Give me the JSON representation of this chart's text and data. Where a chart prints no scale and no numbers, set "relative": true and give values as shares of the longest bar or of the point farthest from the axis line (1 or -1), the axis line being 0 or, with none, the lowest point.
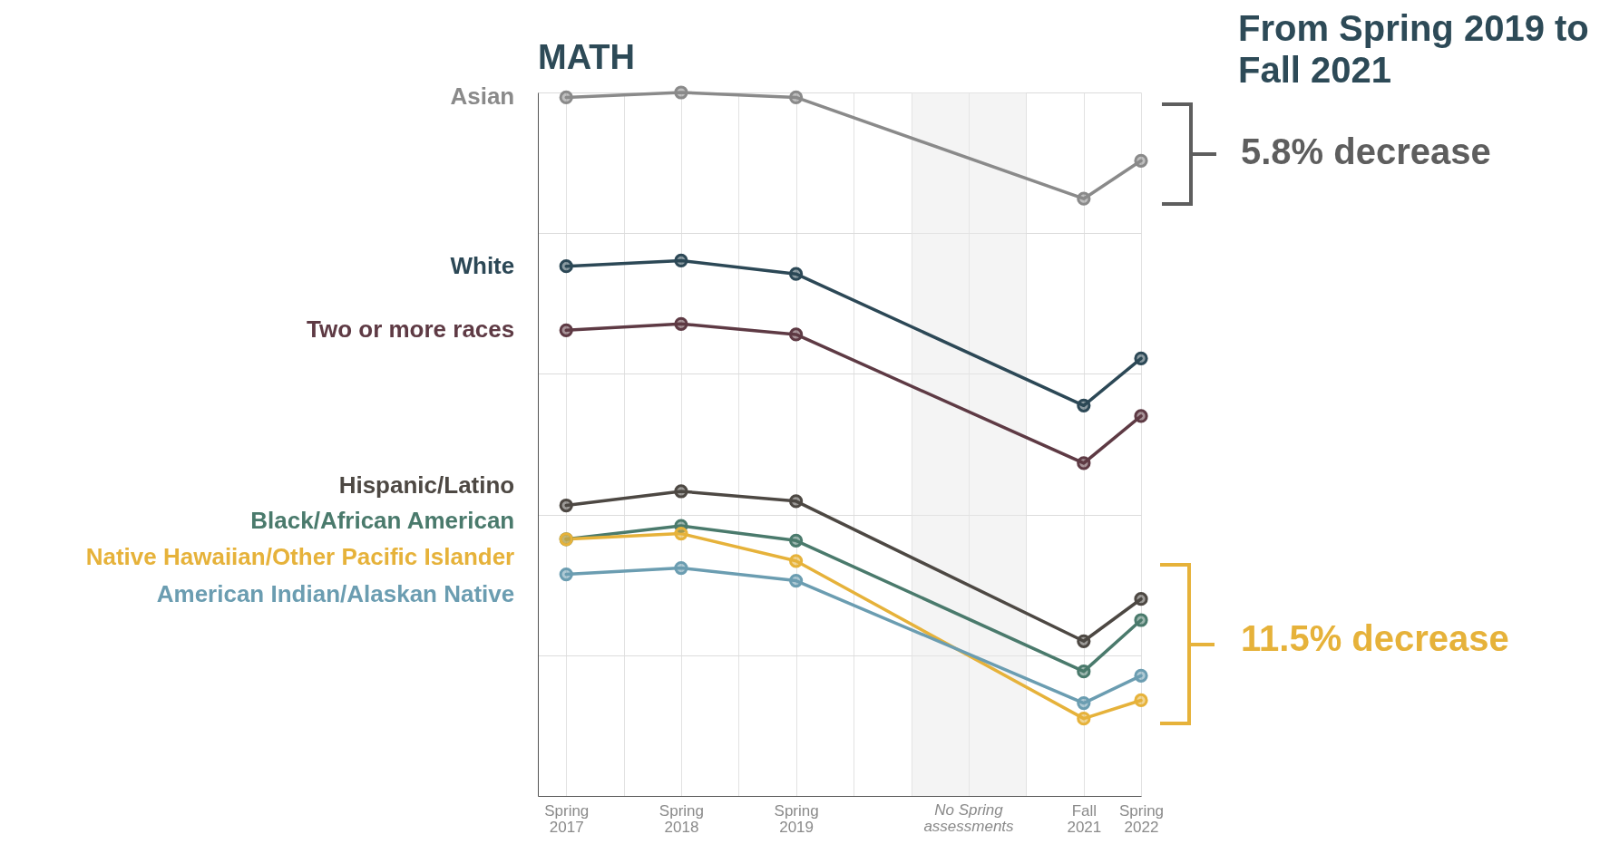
{
  "chart_data": {
    "type": "line",
    "title": "MATH",
    "relative": true,
    "x": [
      "2017-04",
      "2018-04",
      "2019-04",
      "2021-10",
      "2022-04"
    ],
    "xlim": [
      "2017-01",
      "2022-04"
    ],
    "xticks": [
      {
        "value": "2017-04",
        "label": "Spring 2017"
      },
      {
        "value": "2017-10",
        "label": null
      },
      {
        "value": "2018-04",
        "label": "Spring 2018"
      },
      {
        "value": "2018-10",
        "label": null
      },
      {
        "value": "2019-04",
        "label": "Spring 2019"
      },
      {
        "value": "2019-10",
        "label": null
      },
      {
        "value": "2020-04",
        "label": null
      },
      {
        "value": "2020-10",
        "label": null
      },
      {
        "value": "2021-04",
        "label": null
      },
      {
        "value": "2021-10",
        "label": "Fall 2021"
      },
      {
        "value": "2022-04",
        "label": "Spring 2022"
      }
    ],
    "series": [
      {
        "name": "Asian",
        "color": "#8a8a8a",
        "values": [
          0.993,
          1,
          0.993,
          0.849,
          0.903
        ]
      },
      {
        "name": "White",
        "color": "#2c4856",
        "values": [
          0.753,
          0.761,
          0.742,
          0.555,
          0.622
        ]
      },
      {
        "name": "Two or more races",
        "color": "#5e3a44",
        "values": [
          0.662,
          0.671,
          0.656,
          0.473,
          0.54
        ]
      },
      {
        "name": "Hispanic/Latino",
        "color": "#4d4843",
        "values": [
          0.413,
          0.433,
          0.419,
          0.22,
          0.28
        ]
      },
      {
        "name": "Black/African American",
        "color": "#4a7a6c",
        "values": [
          0.365,
          0.384,
          0.363,
          0.177,
          0.25
        ]
      },
      {
        "name": "Native Hawaiian/Other Pacific Islander",
        "color": "#e6b23a",
        "values": [
          0.365,
          0.373,
          0.334,
          0.11,
          0.136
        ]
      },
      {
        "name": "American Indian/Alaskan Native",
        "color": "#6b9db1",
        "values": [
          0.315,
          0.324,
          0.306,
          0.132,
          0.171
        ]
      }
    ],
    "bands": [
      {
        "axis": "x",
        "from": "2020-04",
        "to": "2021-04",
        "label": "No Spring assessments",
        "color": "#e9e9e9"
      }
    ],
    "annotations": [
      "From Spring 2019 to Fall 2021",
      "5.8% decrease",
      "11.5% decrease"
    ],
    "grid": true,
    "legend": false,
    "marker": "circle",
    "line_style": "solid"
  }
}
